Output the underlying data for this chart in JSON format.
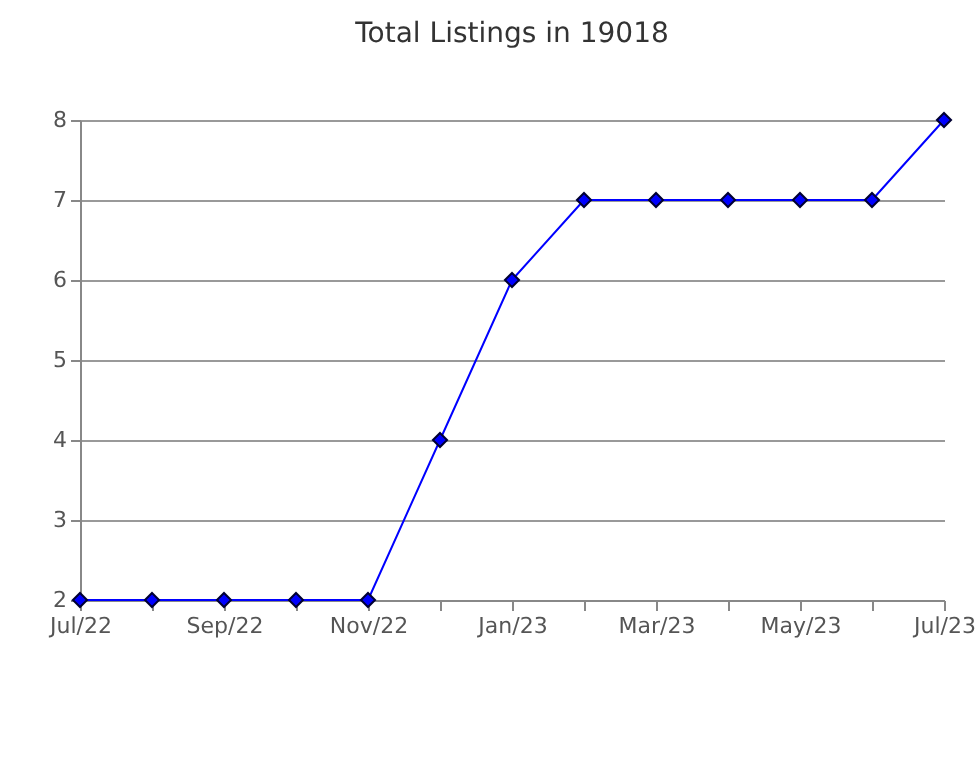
{
  "chart_data": {
    "type": "line",
    "title": "Total Listings in 19018",
    "categories": [
      "Jul/22",
      null,
      "Sep/22",
      null,
      "Nov/22",
      null,
      "Jan/23",
      null,
      "Mar/23",
      null,
      "May/23",
      null,
      "Jul/23"
    ],
    "series": [
      {
        "color": "#0000ff",
        "values": [
          2,
          2,
          2,
          2,
          2,
          4,
          6,
          7,
          7,
          7,
          7,
          7,
          8
        ]
      }
    ],
    "ylim": [
      2,
      8
    ],
    "yticks": [
      2,
      3,
      4,
      5,
      6,
      7,
      8
    ],
    "grid": "y",
    "marker": "diamond",
    "line_style": "solid"
  }
}
